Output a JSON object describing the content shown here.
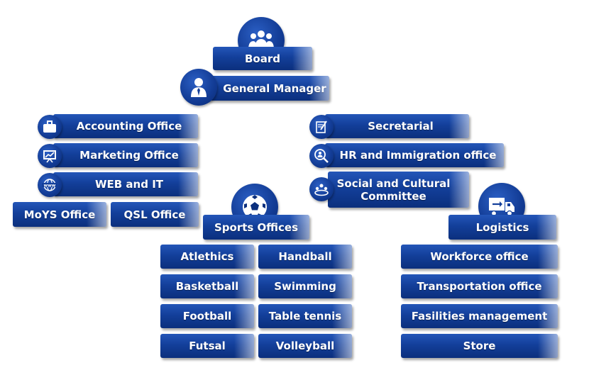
{
  "colors": {
    "primary": "#133f9a",
    "text": "#ffffff"
  },
  "nodes": {
    "board": "Board",
    "gm": "General Manager",
    "accounting": "Accounting Office",
    "marketing": "Marketing Office",
    "web": "WEB and IT",
    "moys": "MoYS Office",
    "qsl": "QSL Office",
    "secretarial": "Secretarial",
    "hr": "HR and Immigration office",
    "social": "Social and Cultural Committee",
    "sports": "Sports Offices",
    "logistics": "Logistics"
  },
  "sports": [
    "Atlethics",
    "Handball",
    "Basketball",
    "Swimming",
    "Football",
    "Table tennis",
    "Futsal",
    "Volleyball"
  ],
  "logistics_items": [
    "Workforce office",
    "Transportation office",
    "Fasilities management",
    "Store"
  ],
  "icons": {
    "board": "group-icon",
    "gm": "manager-icon",
    "accounting": "briefcase-icon",
    "marketing": "presentation-chart-icon",
    "web": "www-globe-icon",
    "secretarial": "notepad-pen-icon",
    "hr": "magnifier-people-icon",
    "social": "community-icon",
    "sports": "football-icon",
    "logistics": "truck-icon"
  }
}
